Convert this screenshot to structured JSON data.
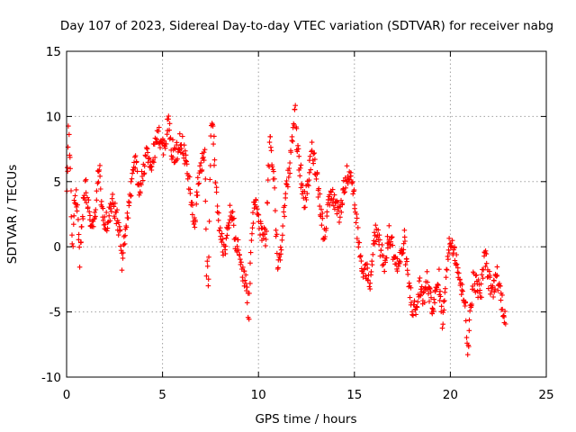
{
  "chart_data": {
    "type": "scatter",
    "title": "Day 107 of 2023, Sidereal Day-to-day VTEC variation (SDTVAR) for receiver nabg",
    "xlabel": "GPS time / hours",
    "ylabel": "SDTVAR / TECUs",
    "xlim": [
      0,
      25
    ],
    "ylim": [
      -10,
      15
    ],
    "xticks": [
      0,
      5,
      10,
      15,
      20,
      25
    ],
    "yticks": [
      -10,
      -5,
      0,
      5,
      10,
      15
    ],
    "grid": true,
    "marker": "+",
    "color": "#ff0000",
    "x_range_of_data": [
      0.0,
      22.9
    ],
    "trend": [
      [
        0.0,
        4.5
      ],
      [
        0.1,
        8.5
      ],
      [
        0.2,
        6.0
      ],
      [
        0.3,
        0.0
      ],
      [
        0.4,
        3.0
      ],
      [
        0.5,
        4.0
      ],
      [
        0.6,
        2.0
      ],
      [
        0.7,
        -0.8
      ],
      [
        0.8,
        1.5
      ],
      [
        0.9,
        4.0
      ],
      [
        1.0,
        4.5
      ],
      [
        1.2,
        2.5
      ],
      [
        1.4,
        1.0
      ],
      [
        1.5,
        3.0
      ],
      [
        1.6,
        5.0
      ],
      [
        1.7,
        6.5
      ],
      [
        1.8,
        3.0
      ],
      [
        2.0,
        1.5
      ],
      [
        2.2,
        2.5
      ],
      [
        2.4,
        3.5
      ],
      [
        2.6,
        2.5
      ],
      [
        2.8,
        0.5
      ],
      [
        2.9,
        -1.5
      ],
      [
        3.0,
        0.0
      ],
      [
        3.2,
        2.5
      ],
      [
        3.4,
        5.0
      ],
      [
        3.6,
        6.5
      ],
      [
        3.8,
        4.0
      ],
      [
        4.0,
        6.0
      ],
      [
        4.2,
        7.5
      ],
      [
        4.4,
        6.5
      ],
      [
        4.6,
        7.5
      ],
      [
        4.8,
        8.5
      ],
      [
        5.0,
        7.5
      ],
      [
        5.2,
        8.5
      ],
      [
        5.3,
        9.5
      ],
      [
        5.5,
        7.5
      ],
      [
        5.7,
        7.0
      ],
      [
        5.9,
        8.0
      ],
      [
        6.1,
        7.5
      ],
      [
        6.3,
        6.0
      ],
      [
        6.5,
        3.5
      ],
      [
        6.7,
        1.5
      ],
      [
        6.8,
        4.0
      ],
      [
        7.0,
        6.5
      ],
      [
        7.2,
        7.0
      ],
      [
        7.3,
        -1.5
      ],
      [
        7.4,
        -3.0
      ],
      [
        7.5,
        7.0
      ],
      [
        7.6,
        10.0
      ],
      [
        7.8,
        4.0
      ],
      [
        8.0,
        1.0
      ],
      [
        8.2,
        -0.5
      ],
      [
        8.4,
        1.5
      ],
      [
        8.6,
        3.0
      ],
      [
        8.8,
        0.5
      ],
      [
        9.0,
        -0.5
      ],
      [
        9.2,
        -2.0
      ],
      [
        9.4,
        -3.0
      ],
      [
        9.5,
        -5.5
      ],
      [
        9.6,
        0.0
      ],
      [
        9.8,
        4.0
      ],
      [
        10.0,
        2.0
      ],
      [
        10.2,
        1.0
      ],
      [
        10.4,
        0.5
      ],
      [
        10.5,
        5.0
      ],
      [
        10.6,
        8.0
      ],
      [
        10.8,
        5.5
      ],
      [
        11.0,
        -1.5
      ],
      [
        11.2,
        0.5
      ],
      [
        11.4,
        3.5
      ],
      [
        11.6,
        6.0
      ],
      [
        11.8,
        9.0
      ],
      [
        11.9,
        10.8
      ],
      [
        12.0,
        8.0
      ],
      [
        12.2,
        5.5
      ],
      [
        12.4,
        3.5
      ],
      [
        12.6,
        5.0
      ],
      [
        12.8,
        7.5
      ],
      [
        13.0,
        6.0
      ],
      [
        13.2,
        3.5
      ],
      [
        13.4,
        1.0
      ],
      [
        13.6,
        2.5
      ],
      [
        13.8,
        4.0
      ],
      [
        14.0,
        3.5
      ],
      [
        14.2,
        2.5
      ],
      [
        14.4,
        4.0
      ],
      [
        14.6,
        5.5
      ],
      [
        14.8,
        6.0
      ],
      [
        15.0,
        3.5
      ],
      [
        15.2,
        0.5
      ],
      [
        15.4,
        -2.5
      ],
      [
        15.6,
        -1.5
      ],
      [
        15.8,
        -3.0
      ],
      [
        16.0,
        0.5
      ],
      [
        16.2,
        1.5
      ],
      [
        16.4,
        -0.5
      ],
      [
        16.6,
        -1.5
      ],
      [
        16.8,
        1.0
      ],
      [
        17.0,
        0.0
      ],
      [
        17.2,
        -1.5
      ],
      [
        17.4,
        -1.0
      ],
      [
        17.6,
        0.5
      ],
      [
        17.8,
        -2.5
      ],
      [
        18.0,
        -4.5
      ],
      [
        18.2,
        -5.0
      ],
      [
        18.4,
        -3.0
      ],
      [
        18.6,
        -4.0
      ],
      [
        18.8,
        -2.5
      ],
      [
        19.0,
        -4.5
      ],
      [
        19.2,
        -4.0
      ],
      [
        19.4,
        -2.5
      ],
      [
        19.6,
        -6.0
      ],
      [
        19.8,
        -1.5
      ],
      [
        20.0,
        0.5
      ],
      [
        20.2,
        0.0
      ],
      [
        20.4,
        -1.5
      ],
      [
        20.6,
        -3.5
      ],
      [
        20.8,
        -4.0
      ],
      [
        20.9,
        -9.0
      ],
      [
        21.0,
        -5.5
      ],
      [
        21.2,
        -2.5
      ],
      [
        21.4,
        -3.0
      ],
      [
        21.6,
        -3.5
      ],
      [
        21.8,
        -0.5
      ],
      [
        22.0,
        -2.5
      ],
      [
        22.2,
        -3.5
      ],
      [
        22.4,
        -2.0
      ],
      [
        22.6,
        -3.5
      ],
      [
        22.8,
        -5.0
      ],
      [
        22.9,
        -5.5
      ]
    ]
  }
}
